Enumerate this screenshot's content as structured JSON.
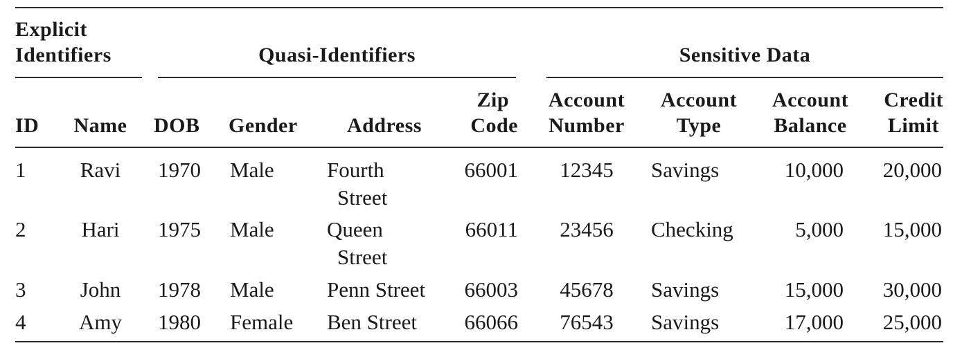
{
  "groups": {
    "explicit_line1": "Explicit",
    "explicit_line2": "Identifiers",
    "quasi": "Quasi-Identifiers",
    "sensitive": "Sensitive Data"
  },
  "columns": {
    "id": "ID",
    "name": "Name",
    "dob": "DOB",
    "gender": "Gender",
    "address": "Address",
    "zip_line1": "Zip",
    "zip_line2": "Code",
    "acct_num_line1": "Account",
    "acct_num_line2": "Number",
    "acct_type_line1": "Account",
    "acct_type_line2": "Type",
    "acct_bal_line1": "Account",
    "acct_bal_line2": "Balance",
    "credit_line1": "Credit",
    "credit_line2": "Limit"
  },
  "rows": [
    {
      "id": "1",
      "name": "Ravi",
      "dob": "1970",
      "gender": "Male",
      "address_line1": "Fourth",
      "address_line2": "Street",
      "zip": "66001",
      "account_number": "12345",
      "account_type": "Savings",
      "account_balance": "10,000",
      "credit_limit": "20,000"
    },
    {
      "id": "2",
      "name": "Hari",
      "dob": "1975",
      "gender": "Male",
      "address_line1": "Queen",
      "address_line2": "Street",
      "zip": "66011",
      "account_number": "23456",
      "account_type": "Checking",
      "account_balance": "5,000",
      "credit_limit": "15,000"
    },
    {
      "id": "3",
      "name": "John",
      "dob": "1978",
      "gender": "Male",
      "address_line1": "Penn Street",
      "address_line2": "",
      "zip": "66003",
      "account_number": "45678",
      "account_type": "Savings",
      "account_balance": "15,000",
      "credit_limit": "30,000"
    },
    {
      "id": "4",
      "name": "Amy",
      "dob": "1980",
      "gender": "Female",
      "address_line1": "Ben Street",
      "address_line2": "",
      "zip": "66066",
      "account_number": "76543",
      "account_type": "Savings",
      "account_balance": "17,000",
      "credit_limit": "25,000"
    }
  ]
}
